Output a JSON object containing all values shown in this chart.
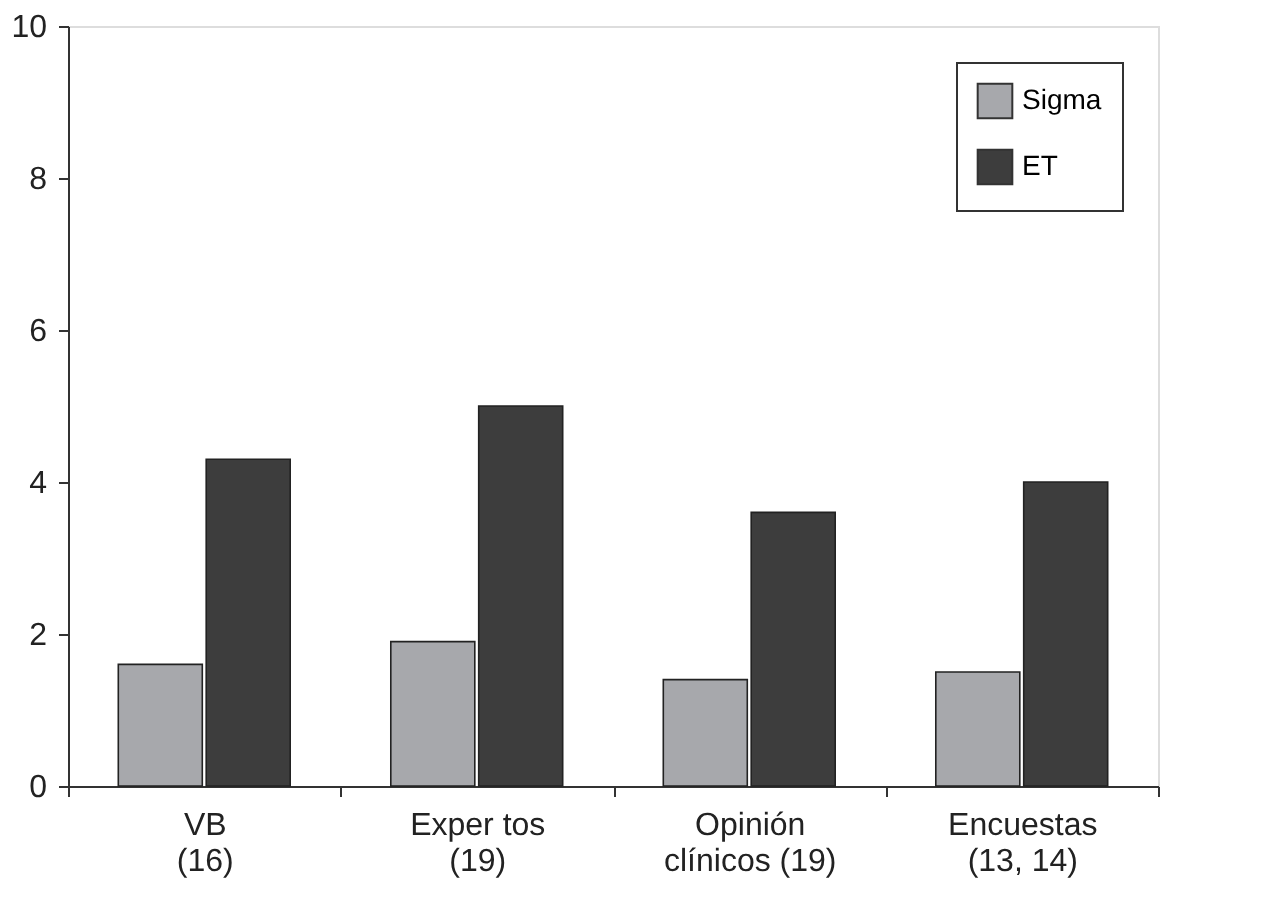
{
  "chart_data": {
    "type": "bar",
    "categories": [
      "VB\n(16)",
      "Exper tos\n(19)",
      "Opinión\nclínicos (19)",
      "Encuestas\n(13, 14)"
    ],
    "series": [
      {
        "name": "Sigma",
        "color": "#a7a8ac",
        "values": [
          1.6,
          1.9,
          1.4,
          1.5
        ]
      },
      {
        "name": "ET",
        "color": "#3d3d3d",
        "values": [
          4.3,
          5.0,
          3.6,
          4.0
        ]
      }
    ],
    "ylim": [
      0,
      10
    ],
    "yticks": [
      0,
      2,
      4,
      6,
      8,
      10
    ],
    "grid": false,
    "legend": "top right"
  }
}
